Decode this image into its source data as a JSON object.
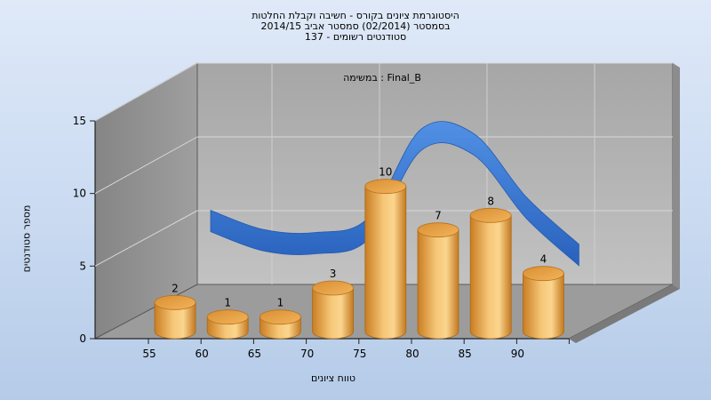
{
  "chart_data": {
    "type": "bar",
    "title_lines": [
      "היסטוגרמת ציונים בקורס - חשיבה וקבלת החלטות",
      "בסמסטר  (02/2014)  סמסטר אביב 2014/15",
      "סטודנטים רשומים - 137"
    ],
    "annotation": "במשימה : Final_B",
    "xlabel": "טווח ציונים",
    "ylabel": "מספר סטודנטים",
    "categories": [
      "55",
      "60",
      "65",
      "70",
      "75",
      "80",
      "85",
      "90"
    ],
    "values": [
      2,
      1,
      1,
      3,
      10,
      7,
      8,
      4
    ],
    "value_labels": [
      "2",
      "1",
      "1",
      "3",
      "10",
      "7",
      "8",
      "4"
    ],
    "ylim": [
      0,
      15
    ],
    "yticks": [
      "0",
      "5",
      "10",
      "15"
    ],
    "grid": true,
    "bar_color": "#e9a445",
    "curve_color": "#2f6fcf",
    "curve_values": [
      4.3,
      3.0,
      2.8,
      3.8,
      9.8,
      9.5,
      5.2,
      2.0
    ]
  }
}
